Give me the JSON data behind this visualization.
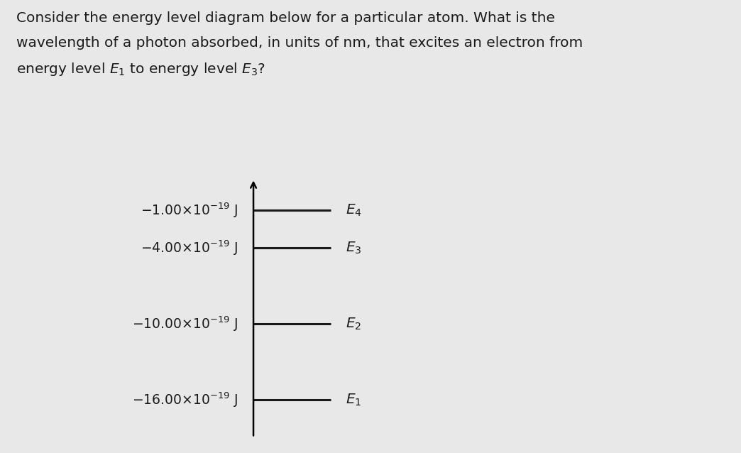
{
  "title_line1": "Consider the energy level diagram below for a particular atom. What is the",
  "title_line2": "wavelength of a photon absorbed, in units of nm, that excites an electron from",
  "title_line3": "energy level $E_1$ to energy level $E_3$?",
  "background_color": "#e8e8e8",
  "text_color": "#1a1a1a",
  "energy_levels": [
    {
      "energy": -1.0,
      "label": "$E_4$",
      "label_left": "$-1.00{\\times}10^{-19}$ J"
    },
    {
      "energy": -4.0,
      "label": "$E_3$",
      "label_left": "$-4.00{\\times}10^{-19}$ J"
    },
    {
      "energy": -10.0,
      "label": "$E_2$",
      "label_left": "$-10.00{\\times}10^{-19}$ J"
    },
    {
      "energy": -16.0,
      "label": "$E_1$",
      "label_left": "$-16.00{\\times}10^{-19}$ J"
    }
  ],
  "ymin": -19.5,
  "ymax": 2.0,
  "title_fontsize": 14.5,
  "energy_fontsize": 13.5,
  "elabel_fontsize": 14.5
}
